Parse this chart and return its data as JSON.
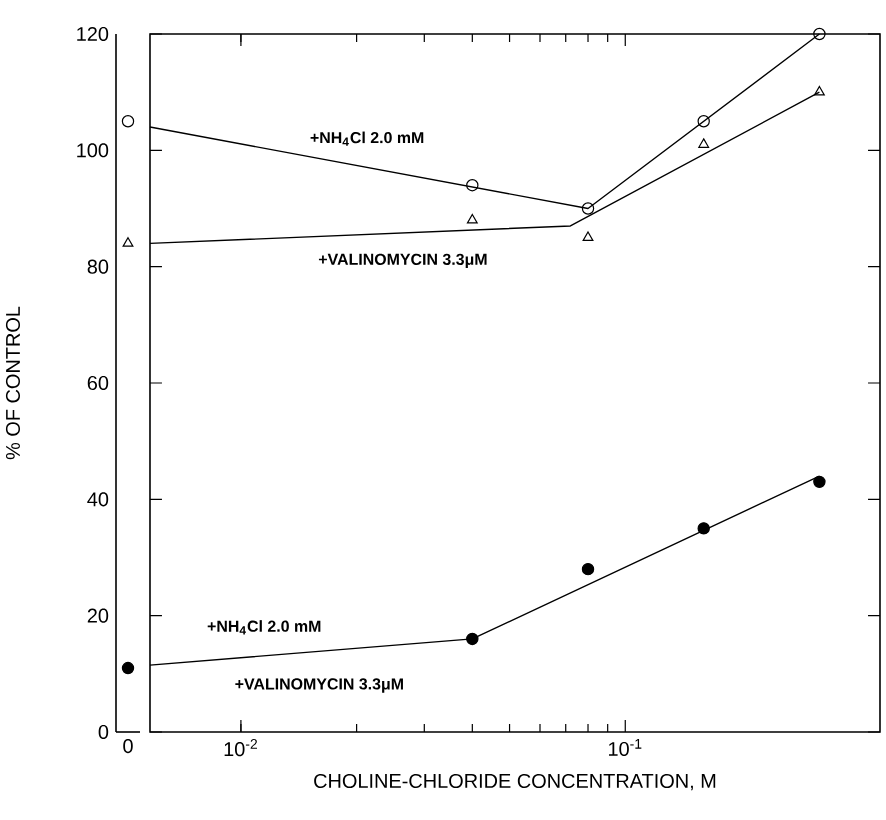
{
  "chart_data": [
    {
      "type": "scatter",
      "categories": [
        "0"
      ],
      "ylim": [
        0,
        120
      ],
      "yticks": [
        0,
        20,
        40,
        60,
        80,
        100,
        120
      ],
      "tick_labels": "x",
      "grid": false,
      "series": [
        {
          "marker": "circle",
          "color": "#000000",
          "values": [
            105
          ]
        },
        {
          "marker": "triangle",
          "color": "#000000",
          "values": [
            84
          ]
        },
        {
          "marker": "filled circle",
          "color": "#000000",
          "values": [
            11
          ]
        }
      ]
    },
    {
      "type": "scatter",
      "xlabel": "CHOLINE-CHLORIDE CONCENTRATION, M",
      "ylabel": "% OF CONTROL",
      "log": "x",
      "xlim": [
        0.0058,
        0.46
      ],
      "ylim": [
        0,
        120
      ],
      "xticks": [
        {
          "value": 0.01,
          "label": "10$^{-2}$"
        },
        {
          "value": 0.1,
          "label": "10$^{-1}$"
        }
      ],
      "yticks": [
        0,
        20,
        40,
        60,
        80,
        100,
        120
      ],
      "grid": false,
      "series": [
        {
          "marker": "circle",
          "color": "#000000",
          "x": [
            0.04,
            0.08,
            0.16,
            0.32
          ],
          "values": [
            94,
            90,
            105,
            120
          ]
        },
        {
          "marker": "triangle",
          "color": "#000000",
          "x": [
            0.04,
            0.08,
            0.16,
            0.32
          ],
          "values": [
            88,
            85,
            101,
            110
          ]
        },
        {
          "marker": "filled circle",
          "color": "#000000",
          "x": [
            0.04,
            0.08,
            0.16,
            0.32
          ],
          "values": [
            16,
            28,
            35,
            43
          ]
        },
        {
          "type": "line",
          "marker": "none",
          "line_style": "solid",
          "color": "#000000",
          "x": [
            0.0058,
            0.08,
            0.32
          ],
          "values": [
            104,
            90,
            120
          ]
        },
        {
          "type": "line",
          "marker": "none",
          "line_style": "solid",
          "color": "#000000",
          "x": [
            0.0058,
            0.072,
            0.32
          ],
          "values": [
            84,
            87,
            110
          ]
        },
        {
          "type": "line",
          "marker": "none",
          "line_style": "solid",
          "color": "#000000",
          "x": [
            0.0058,
            0.04,
            0.32
          ],
          "values": [
            11.5,
            16,
            44
          ]
        }
      ],
      "annotations": [
        "+NH$_{4}$Cl 2.0 mM",
        "+VALINOMYCIN 3.3μM",
        "+NH$_{4}$Cl 2.0 mM",
        "+VALINOMYCIN 3.3μM"
      ]
    }
  ]
}
